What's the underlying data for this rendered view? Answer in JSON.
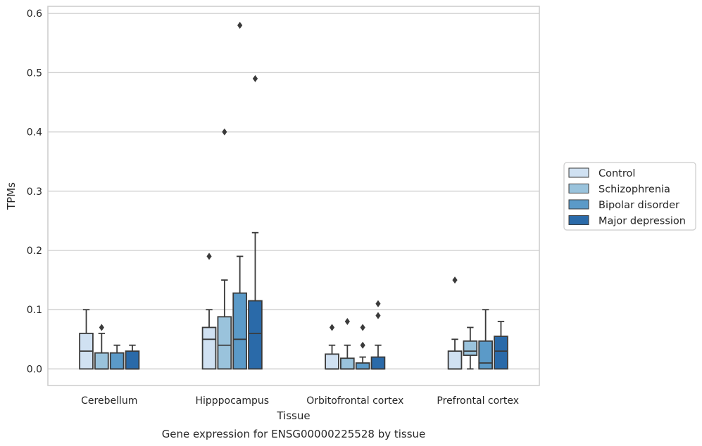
{
  "chart_data": {
    "type": "boxplot",
    "title": "",
    "caption": "Gene expression for ENSG00000225528 by tissue",
    "xlabel": "Tissue",
    "ylabel": "TPMs",
    "ylim": [
      -0.028,
      0.612
    ],
    "yticks": [
      0.0,
      0.1,
      0.2,
      0.3,
      0.4,
      0.5,
      0.6
    ],
    "ytick_labels": [
      "0.0",
      "0.1",
      "0.2",
      "0.3",
      "0.4",
      "0.5",
      "0.6"
    ],
    "grid": "horizontal",
    "legend_position": "right",
    "categories": [
      "Cerebellum",
      "Hipppocampus",
      "Orbitofrontal cortex",
      "Prefrontal cortex"
    ],
    "series": [
      {
        "name": "Control",
        "color": "#d0e1f2",
        "boxes": [
          {
            "min": 0.0,
            "q1": 0.0,
            "median": 0.03,
            "q3": 0.06,
            "max": 0.1,
            "outliers": []
          },
          {
            "min": 0.0,
            "q1": 0.0,
            "median": 0.05,
            "q3": 0.07,
            "max": 0.1,
            "outliers": [
              0.19
            ]
          },
          {
            "min": 0.0,
            "q1": 0.0,
            "median": 0.0,
            "q3": 0.025,
            "max": 0.04,
            "outliers": [
              0.07
            ]
          },
          {
            "min": 0.0,
            "q1": 0.0,
            "median": 0.0,
            "q3": 0.03,
            "max": 0.05,
            "outliers": [
              0.15
            ]
          }
        ]
      },
      {
        "name": "Schizophrenia",
        "color": "#9ac3dc",
        "boxes": [
          {
            "min": 0.0,
            "q1": 0.0,
            "median": 0.0,
            "q3": 0.027,
            "max": 0.06,
            "outliers": [
              0.07
            ]
          },
          {
            "min": 0.0,
            "q1": 0.0,
            "median": 0.04,
            "q3": 0.088,
            "max": 0.15,
            "outliers": [
              0.4
            ]
          },
          {
            "min": 0.0,
            "q1": 0.0,
            "median": 0.0,
            "q3": 0.018,
            "max": 0.04,
            "outliers": [
              0.08
            ]
          },
          {
            "min": 0.0,
            "q1": 0.023,
            "median": 0.03,
            "q3": 0.047,
            "max": 0.07,
            "outliers": []
          }
        ]
      },
      {
        "name": "Bipolar disorder",
        "color": "#5b9ac8",
        "boxes": [
          {
            "min": 0.0,
            "q1": 0.0,
            "median": 0.0,
            "q3": 0.027,
            "max": 0.04,
            "outliers": []
          },
          {
            "min": 0.0,
            "q1": 0.0,
            "median": 0.05,
            "q3": 0.128,
            "max": 0.19,
            "outliers": [
              0.58
            ]
          },
          {
            "min": 0.0,
            "q1": 0.0,
            "median": 0.0,
            "q3": 0.01,
            "max": 0.02,
            "outliers": [
              0.04,
              0.07
            ]
          },
          {
            "min": 0.0,
            "q1": 0.0,
            "median": 0.01,
            "q3": 0.047,
            "max": 0.1,
            "outliers": []
          }
        ]
      },
      {
        "name": "Major depression",
        "color": "#2a6aa9",
        "boxes": [
          {
            "min": 0.0,
            "q1": 0.0,
            "median": 0.0,
            "q3": 0.03,
            "max": 0.04,
            "outliers": []
          },
          {
            "min": 0.0,
            "q1": 0.0,
            "median": 0.06,
            "q3": 0.115,
            "max": 0.23,
            "outliers": [
              0.49
            ]
          },
          {
            "min": 0.0,
            "q1": 0.0,
            "median": 0.0,
            "q3": 0.02,
            "max": 0.04,
            "outliers": [
              0.09,
              0.11
            ]
          },
          {
            "min": 0.0,
            "q1": 0.0,
            "median": 0.03,
            "q3": 0.055,
            "max": 0.08,
            "outliers": []
          }
        ]
      }
    ]
  }
}
